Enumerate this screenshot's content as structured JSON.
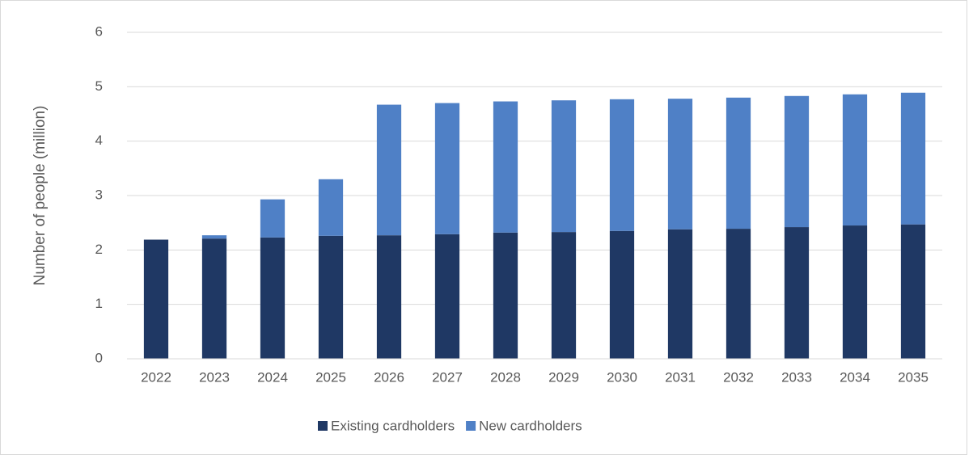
{
  "chart_data": {
    "type": "stacked_bar",
    "ylabel": "Number of people (million)",
    "categories": [
      "2022",
      "2023",
      "2024",
      "2025",
      "2026",
      "2027",
      "2028",
      "2029",
      "2030",
      "2031",
      "2032",
      "2033",
      "2034",
      "2035"
    ],
    "series": [
      {
        "name": "Existing cardholders",
        "color": "#1f3864",
        "values": [
          2.19,
          2.21,
          2.23,
          2.26,
          2.27,
          2.29,
          2.32,
          2.33,
          2.35,
          2.38,
          2.39,
          2.42,
          2.45,
          2.47
        ]
      },
      {
        "name": "New cardholders",
        "color": "#4f80c6",
        "values": [
          0,
          0.06,
          0.7,
          1.04,
          2.4,
          2.41,
          2.41,
          2.42,
          2.42,
          2.4,
          2.41,
          2.41,
          2.41,
          2.42
        ]
      }
    ],
    "ylim": [
      0,
      6
    ],
    "yticks": [
      0,
      1,
      2,
      3,
      4,
      5,
      6
    ],
    "grid": true,
    "legend": "bottom"
  }
}
